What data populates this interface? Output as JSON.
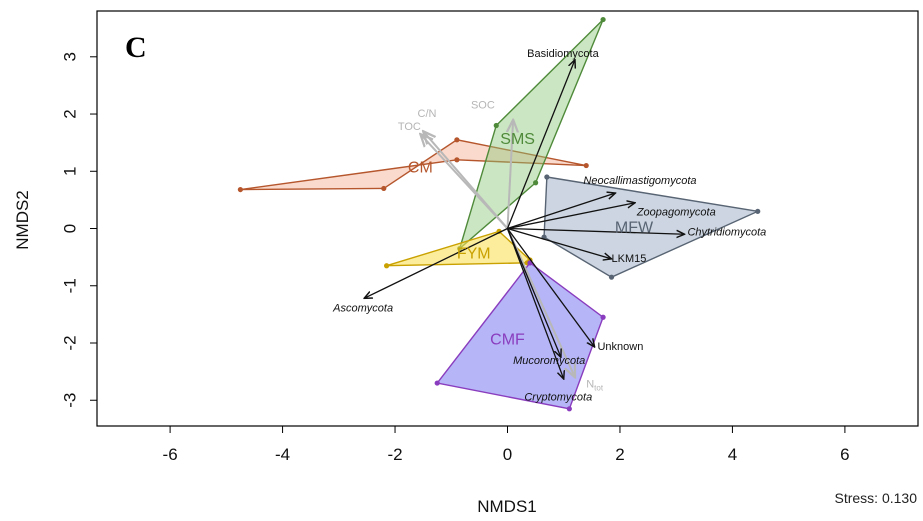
{
  "panel_label": "C",
  "stress_text": "Stress: 0.130",
  "colors": {
    "arrow": "#111111",
    "env_arrow": "#b8b8b8",
    "axis": "#000000"
  },
  "chart_data": {
    "type": "scatter",
    "subtype": "nmds-ordination-biplot",
    "title": "",
    "xlabel": "NMDS1",
    "ylabel": "NMDS2",
    "xlim": [
      -7.3,
      7.3
    ],
    "ylim": [
      -3.45,
      3.8
    ],
    "xticks": [
      -6,
      -4,
      -2,
      0,
      2,
      4,
      6
    ],
    "yticks": [
      -3,
      -2,
      -1,
      0,
      1,
      2,
      3
    ],
    "xtick_labels": [
      "-6",
      "-4",
      "-2",
      "0",
      "2",
      "4",
      "6"
    ],
    "ytick_labels": [
      "-3",
      "-2",
      "-1",
      "0",
      "1",
      "2",
      "3"
    ],
    "grid": false,
    "groups": [
      {
        "name": "CM",
        "color": "#b5562d",
        "fill": "rgba(240,150,110,0.35)",
        "label_pos": [
          -1.55,
          1.05
        ],
        "points": [
          [
            -4.75,
            0.68
          ],
          [
            -2.2,
            0.7
          ],
          [
            -0.9,
            1.55
          ],
          [
            1.4,
            1.1
          ],
          [
            -0.9,
            1.2
          ]
        ]
      },
      {
        "name": "SMS",
        "color": "#4f8a3a",
        "fill": "rgba(140,200,120,0.45)",
        "label_pos": [
          0.18,
          1.55
        ],
        "points": [
          [
            -0.85,
            -0.35
          ],
          [
            -0.2,
            1.8
          ],
          [
            1.7,
            3.65
          ],
          [
            0.5,
            0.8
          ]
        ]
      },
      {
        "name": "FYM",
        "color": "#c9a100",
        "fill": "rgba(250,225,90,0.6)",
        "label_pos": [
          -0.6,
          -0.45
        ],
        "points": [
          [
            -2.15,
            -0.65
          ],
          [
            -0.15,
            -0.05
          ],
          [
            0.4,
            -0.55
          ],
          [
            0.35,
            -0.6
          ]
        ]
      },
      {
        "name": "MFW",
        "color": "#586473",
        "fill": "rgba(170,185,205,0.6)",
        "label_pos": [
          2.25,
          0.0
        ],
        "points": [
          [
            0.7,
            0.9
          ],
          [
            4.45,
            0.3
          ],
          [
            1.85,
            -0.85
          ],
          [
            0.65,
            -0.15
          ]
        ]
      },
      {
        "name": "CMF",
        "color": "#8a3dbe",
        "fill": "rgba(120,120,240,0.55)",
        "label_pos": [
          0.0,
          -1.95
        ],
        "points": [
          [
            0.4,
            -0.6
          ],
          [
            1.7,
            -1.55
          ],
          [
            1.1,
            -3.15
          ],
          [
            -1.25,
            -2.7
          ]
        ]
      }
    ],
    "species_vectors": [
      {
        "name": "Basidiomycota",
        "end": [
          1.2,
          2.95
        ],
        "label_pos": [
          0.35,
          3.05
        ],
        "italic": false
      },
      {
        "name": "Neocallimastigomycota",
        "end": [
          1.92,
          0.62
        ],
        "label_pos": [
          1.35,
          0.83
        ],
        "italic": true
      },
      {
        "name": "Zoopagomycota",
        "end": [
          2.27,
          0.45
        ],
        "label_pos": [
          2.3,
          0.28
        ],
        "italic": true
      },
      {
        "name": "Chytridiomycota",
        "end": [
          3.15,
          -0.1
        ],
        "label_pos": [
          3.2,
          -0.07
        ],
        "italic": true
      },
      {
        "name": "LKM15",
        "end": [
          1.85,
          -0.53
        ],
        "label_pos": [
          1.85,
          -0.53
        ],
        "italic": false
      },
      {
        "name": "Ascomycota",
        "end": [
          -2.55,
          -1.22
        ],
        "label_pos": [
          -3.1,
          -1.4
        ],
        "italic": true
      },
      {
        "name": "Unknown",
        "end": [
          1.55,
          -2.07
        ],
        "label_pos": [
          1.6,
          -2.07
        ],
        "italic": false
      },
      {
        "name": "Mucoromycota",
        "end": [
          0.95,
          -2.25
        ],
        "label_pos": [
          0.1,
          -2.32
        ],
        "italic": true
      },
      {
        "name": "Cryptomycota",
        "end": [
          1.0,
          -2.63
        ],
        "label_pos": [
          0.3,
          -2.95
        ],
        "italic": true
      }
    ],
    "env_vectors": [
      {
        "name": "C/N",
        "end": [
          -1.5,
          1.7
        ],
        "label_pos": [
          -1.6,
          1.95
        ]
      },
      {
        "name": "TOC",
        "end": [
          -1.55,
          1.65
        ],
        "label_pos": [
          -1.95,
          1.72
        ]
      },
      {
        "name": "SOC",
        "end": [
          0.1,
          1.9
        ],
        "label_pos": [
          -0.65,
          2.1
        ]
      },
      {
        "name": "N_tot",
        "end": [
          1.2,
          -2.6
        ],
        "label_pos": [
          1.4,
          -2.78
        ]
      }
    ]
  }
}
